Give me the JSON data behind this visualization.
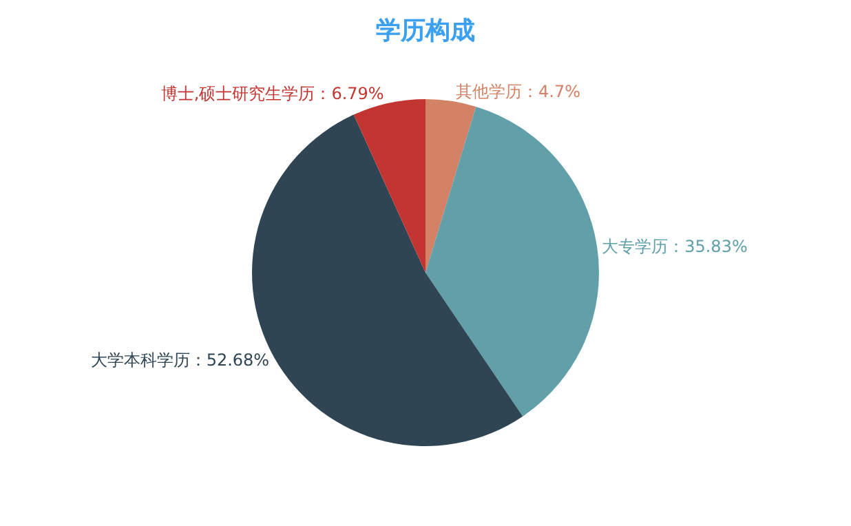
{
  "chart_data": {
    "type": "pie",
    "title": "学历构成",
    "categories": [
      "其他学历",
      "大专学历",
      "大学本科学历",
      "博士,硕士研究生学历"
    ],
    "values": [
      4.7,
      35.83,
      52.68,
      6.79
    ],
    "value_labels": [
      "4.7%",
      "35.83%",
      "52.68%",
      "6.79%"
    ],
    "colors": [
      "#d48265",
      "#61a0a8",
      "#2f4554",
      "#c23531"
    ],
    "legend": false
  }
}
